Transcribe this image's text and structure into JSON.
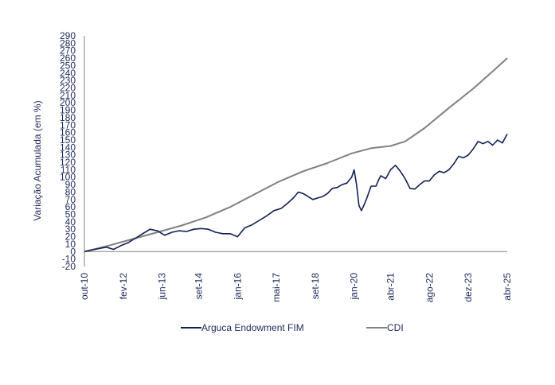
{
  "chart_data": {
    "type": "line",
    "title": "",
    "xlabel": "",
    "ylabel": "Variação Acumulada (em %)",
    "ylim": [
      -20,
      290
    ],
    "ystep": 10,
    "grid": false,
    "legend_position": "bottom",
    "x_ticks": [
      "out-10",
      "fev-12",
      "jun-13",
      "set-14",
      "jan-16",
      "mai-17",
      "set-18",
      "jan-20",
      "abr-21",
      "ago-22",
      "dez-23",
      "abr-25"
    ],
    "x_tick_index": [
      0,
      16,
      32,
      47,
      63,
      79,
      95,
      111,
      126,
      142,
      158,
      174
    ],
    "series": [
      {
        "name": "Arguca Endowment FIM",
        "color": "#0f2153",
        "points": [
          [
            0,
            0
          ],
          [
            3,
            2
          ],
          [
            6,
            4
          ],
          [
            9,
            6
          ],
          [
            12,
            3
          ],
          [
            15,
            8
          ],
          [
            18,
            12
          ],
          [
            21,
            18
          ],
          [
            24,
            24
          ],
          [
            27,
            30
          ],
          [
            30,
            28
          ],
          [
            33,
            22
          ],
          [
            36,
            26
          ],
          [
            39,
            28
          ],
          [
            42,
            27
          ],
          [
            45,
            30
          ],
          [
            48,
            31
          ],
          [
            51,
            30
          ],
          [
            54,
            26
          ],
          [
            57,
            24
          ],
          [
            60,
            24
          ],
          [
            63,
            20
          ],
          [
            66,
            32
          ],
          [
            69,
            36
          ],
          [
            72,
            42
          ],
          [
            75,
            48
          ],
          [
            78,
            55
          ],
          [
            81,
            58
          ],
          [
            84,
            66
          ],
          [
            86,
            72
          ],
          [
            88,
            80
          ],
          [
            90,
            78
          ],
          [
            92,
            74
          ],
          [
            94,
            70
          ],
          [
            96,
            72
          ],
          [
            98,
            74
          ],
          [
            100,
            78
          ],
          [
            102,
            85
          ],
          [
            104,
            86
          ],
          [
            106,
            90
          ],
          [
            108,
            92
          ],
          [
            110,
            100
          ],
          [
            111,
            110
          ],
          [
            112,
            90
          ],
          [
            113,
            62
          ],
          [
            114,
            55
          ],
          [
            115,
            62
          ],
          [
            116,
            70
          ],
          [
            118,
            88
          ],
          [
            120,
            88
          ],
          [
            121,
            96
          ],
          [
            122,
            102
          ],
          [
            124,
            98
          ],
          [
            126,
            110
          ],
          [
            128,
            116
          ],
          [
            130,
            108
          ],
          [
            132,
            98
          ],
          [
            134,
            85
          ],
          [
            136,
            84
          ],
          [
            138,
            90
          ],
          [
            140,
            95
          ],
          [
            142,
            95
          ],
          [
            144,
            103
          ],
          [
            146,
            108
          ],
          [
            148,
            106
          ],
          [
            150,
            110
          ],
          [
            152,
            118
          ],
          [
            154,
            128
          ],
          [
            156,
            126
          ],
          [
            158,
            130
          ],
          [
            160,
            138
          ],
          [
            162,
            148
          ],
          [
            164,
            145
          ],
          [
            166,
            148
          ],
          [
            168,
            143
          ],
          [
            170,
            150
          ],
          [
            172,
            146
          ],
          [
            174,
            158
          ]
        ]
      },
      {
        "name": "CDI",
        "color": "#808080",
        "points": [
          [
            0,
            0
          ],
          [
            10,
            8
          ],
          [
            20,
            17
          ],
          [
            30,
            26
          ],
          [
            40,
            35
          ],
          [
            50,
            46
          ],
          [
            60,
            60
          ],
          [
            70,
            77
          ],
          [
            80,
            94
          ],
          [
            90,
            108
          ],
          [
            100,
            119
          ],
          [
            110,
            132
          ],
          [
            118,
            139
          ],
          [
            126,
            142
          ],
          [
            132,
            148
          ],
          [
            140,
            166
          ],
          [
            150,
            193
          ],
          [
            160,
            219
          ],
          [
            170,
            248
          ],
          [
            174,
            260
          ]
        ]
      }
    ]
  }
}
